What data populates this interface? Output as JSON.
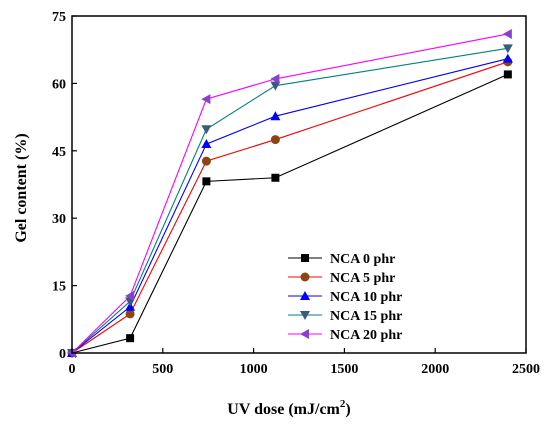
{
  "chart_data": {
    "type": "line",
    "xlabel": "UV dose (mJ/cm",
    "xlabel_sup": "2",
    "xlabel_end": ")",
    "ylabel": "Gel content (%)",
    "xlim": [
      0,
      2500
    ],
    "ylim": [
      0,
      75
    ],
    "xticks": [
      0,
      500,
      1000,
      1500,
      2000,
      2500
    ],
    "yticks": [
      0,
      15,
      30,
      45,
      60,
      75
    ],
    "grid": false,
    "legend_position": "lower-right",
    "x": [
      0,
      320,
      740,
      1120,
      2400
    ],
    "series": [
      {
        "name": "NCA   0 phr",
        "color": "#000000",
        "marker": "square",
        "values": [
          0,
          3.3,
          38.2,
          39.0,
          62.0
        ]
      },
      {
        "name": "NCA   5 phr",
        "color": "#ff0000",
        "marker": "circle",
        "values": [
          0,
          8.7,
          42.7,
          47.5,
          64.8
        ]
      },
      {
        "name": "NCA   10 phr",
        "color": "#0000ff",
        "marker": "triangle-up",
        "values": [
          0,
          10.3,
          46.5,
          52.7,
          65.5
        ]
      },
      {
        "name": "NCA   15 phr",
        "color": "#008080",
        "marker": "triangle-down",
        "values": [
          0,
          11.5,
          49.8,
          59.5,
          67.8
        ]
      },
      {
        "name": "NCA   20 phr",
        "color": "#ff00ff",
        "marker": "triangle-left",
        "values": [
          0,
          12.7,
          56.5,
          61.0,
          71.0
        ]
      }
    ]
  }
}
